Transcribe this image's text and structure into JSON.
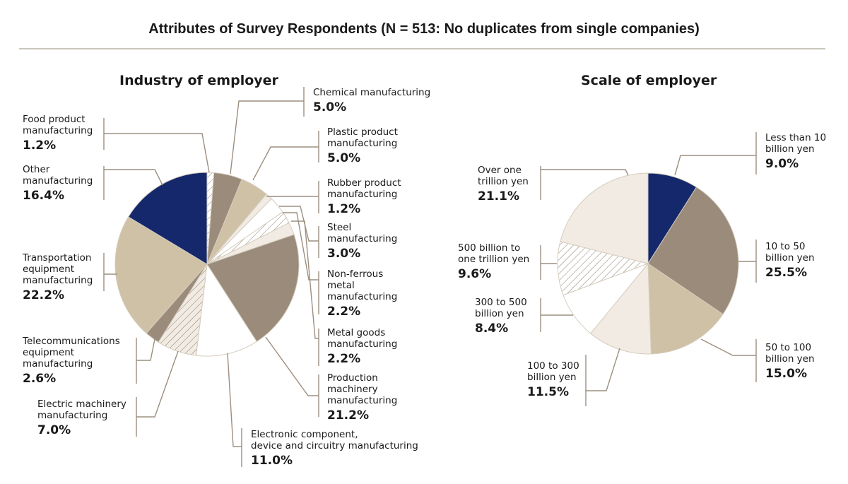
{
  "title": "Attributes of Survey Respondents (N = 513: No duplicates from single companies)",
  "colors": {
    "navy": "#14286b",
    "taupe": "#9a8b7b",
    "tan": "#cfc1a6",
    "cream": "#f1ebe3",
    "white": "#ffffff",
    "line": "#9c8f80",
    "rule": "#cbc6bd"
  },
  "chart_data": [
    {
      "type": "pie",
      "title": "Industry of employer",
      "start": "12 o'clock",
      "direction": "clockwise",
      "unit": "%",
      "slices": [
        {
          "label": "Food product\nmanufacturing",
          "value": 1.2,
          "display": "1.2%",
          "fill": "hatch"
        },
        {
          "label": "Chemical manufacturing",
          "value": 5.0,
          "display": "5.0%",
          "fill": "taupe"
        },
        {
          "label": "Plastic product\nmanufacturing",
          "value": 5.0,
          "display": "5.0%",
          "fill": "tan"
        },
        {
          "label": "Rubber product\nmanufacturing",
          "value": 1.2,
          "display": "1.2%",
          "fill": "cream"
        },
        {
          "label": "Steel\nmanufacturing",
          "value": 3.0,
          "display": "3.0%",
          "fill": "white"
        },
        {
          "label": "Non-ferrous\nmetal\nmanufacturing",
          "value": 2.2,
          "display": "2.2%",
          "fill": "hatch"
        },
        {
          "label": "Metal goods\nmanufacturing",
          "value": 2.2,
          "display": "2.2%",
          "fill": "cream"
        },
        {
          "label": "Production\nmachinery\nmanufacturing",
          "value": 21.2,
          "display": "21.2%",
          "fill": "taupe"
        },
        {
          "label": "Electronic component,\ndevice and circuitry manufacturing",
          "value": 11.0,
          "display": "11.0%",
          "fill": "white"
        },
        {
          "label": "Electric machinery\nmanufacturing",
          "value": 7.0,
          "display": "7.0%",
          "fill": "hatch-cream"
        },
        {
          "label": "Telecommunications\nequipment\nmanufacturing",
          "value": 2.6,
          "display": "2.6%",
          "fill": "taupe"
        },
        {
          "label": "Transportation\nequipment\nmanufacturing",
          "value": 22.2,
          "display": "22.2%",
          "fill": "tan"
        },
        {
          "label": "Other\nmanufacturing",
          "value": 16.4,
          "display": "16.4%",
          "fill": "navy"
        }
      ]
    },
    {
      "type": "pie",
      "title": "Scale of employer",
      "start": "12 o'clock",
      "direction": "clockwise",
      "unit": "%",
      "slices": [
        {
          "label": "Less than 10\nbillion yen",
          "value": 9.0,
          "display": "9.0%",
          "fill": "navy"
        },
        {
          "label": "10 to 50\nbillion yen",
          "value": 25.5,
          "display": "25.5%",
          "fill": "taupe"
        },
        {
          "label": "50 to 100\nbillion yen",
          "value": 15.0,
          "display": "15.0%",
          "fill": "tan"
        },
        {
          "label": "100 to 300\nbillion yen",
          "value": 11.5,
          "display": "11.5%",
          "fill": "cream"
        },
        {
          "label": "300 to 500\nbillion yen",
          "value": 8.4,
          "display": "8.4%",
          "fill": "white"
        },
        {
          "label": "500 billion to\none trillion yen",
          "value": 9.6,
          "display": "9.6%",
          "fill": "hatch"
        },
        {
          "label": "Over one\ntrillion yen",
          "value": 21.1,
          "display": "21.1%",
          "fill": "cream"
        }
      ]
    }
  ]
}
